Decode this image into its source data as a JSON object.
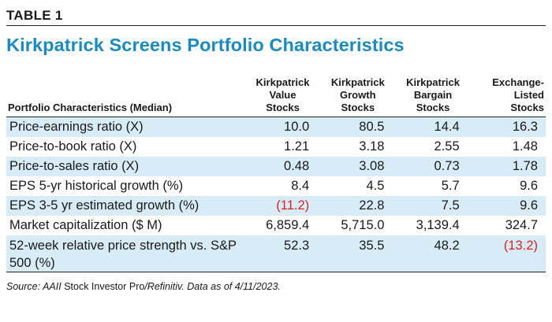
{
  "table_label": "TABLE 1",
  "title": "Kirkpatrick Screens Portfolio Characteristics",
  "header": {
    "first": "Portfolio Characteristics (Median)",
    "columns": [
      [
        "Kirkpatrick",
        "Value",
        "Stocks"
      ],
      [
        "Kirkpatrick",
        "Growth",
        "Stocks"
      ],
      [
        "Kirkpatrick",
        "Bargain",
        "Stocks"
      ],
      [
        "Exchange-",
        "Listed",
        "Stocks"
      ]
    ]
  },
  "rows": [
    {
      "label": "Price-earnings ratio (X)",
      "values": [
        "10.0",
        "80.5",
        "14.4",
        "16.3"
      ],
      "negative": [
        false,
        false,
        false,
        false
      ]
    },
    {
      "label": "Price-to-book ratio (X)",
      "values": [
        "1.21",
        "3.18",
        "2.55",
        "1.48"
      ],
      "negative": [
        false,
        false,
        false,
        false
      ]
    },
    {
      "label": "Price-to-sales ratio (X)",
      "values": [
        "0.48",
        "3.08",
        "0.73",
        "1.78"
      ],
      "negative": [
        false,
        false,
        false,
        false
      ]
    },
    {
      "label": "EPS 5-yr historical growth (%)",
      "values": [
        "8.4",
        "4.5",
        "5.7",
        "9.6"
      ],
      "negative": [
        false,
        false,
        false,
        false
      ]
    },
    {
      "label": "EPS 3-5 yr estimated growth (%)",
      "values": [
        "(11.2)",
        "22.8",
        "7.5",
        "9.6"
      ],
      "negative": [
        true,
        false,
        false,
        false
      ]
    },
    {
      "label": "Market capitalization ($ M)",
      "values": [
        "6,859.4",
        "5,715.0",
        "3,139.4",
        "324.7"
      ],
      "negative": [
        false,
        false,
        false,
        false
      ]
    },
    {
      "label": "52-week relative price strength vs. S&P 500 (%)",
      "values": [
        "52.3",
        "35.5",
        "48.2",
        "(13.2)"
      ],
      "negative": [
        false,
        false,
        false,
        true
      ]
    }
  ],
  "source": {
    "prefix": "Source: AAII",
    "middle": " Stock Investor Pro",
    "suffix": "/Refinitiv. Data as of 4/11/2023."
  },
  "colors": {
    "title": "#1a8bc0",
    "row_shade": "#d7ecf7",
    "negative": "#e02020"
  }
}
